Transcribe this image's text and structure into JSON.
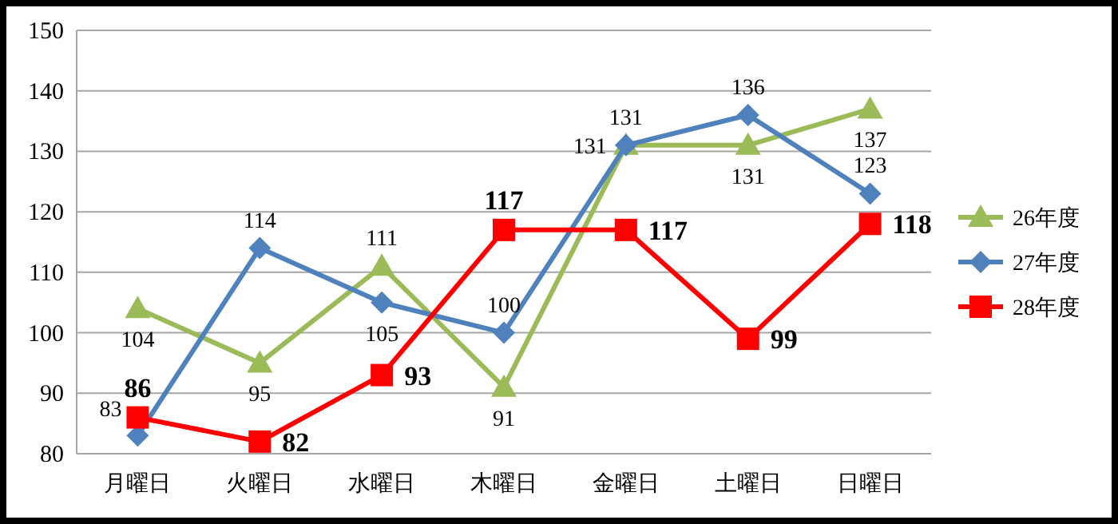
{
  "chart_data": {
    "type": "line",
    "categories": [
      "月曜日",
      "火曜日",
      "水曜日",
      "木曜日",
      "金曜日",
      "土曜日",
      "日曜日"
    ],
    "series": [
      {
        "name": "26年度",
        "color": "#9bbb59",
        "marker": "triangle",
        "values": [
          104,
          95,
          111,
          91,
          131,
          131,
          137
        ]
      },
      {
        "name": "27年度",
        "color": "#4f81bd",
        "marker": "diamond",
        "values": [
          83,
          114,
          105,
          100,
          131,
          136,
          123
        ]
      },
      {
        "name": "28年度",
        "color": "#ff0000",
        "marker": "square",
        "values": [
          86,
          82,
          93,
          117,
          117,
          99,
          118
        ]
      }
    ],
    "ylim": [
      80,
      150
    ],
    "yticks": [
      80,
      90,
      100,
      110,
      120,
      130,
      140,
      150
    ],
    "grid": "y",
    "legend": "right",
    "data_labels": true,
    "line_style": "solid"
  }
}
